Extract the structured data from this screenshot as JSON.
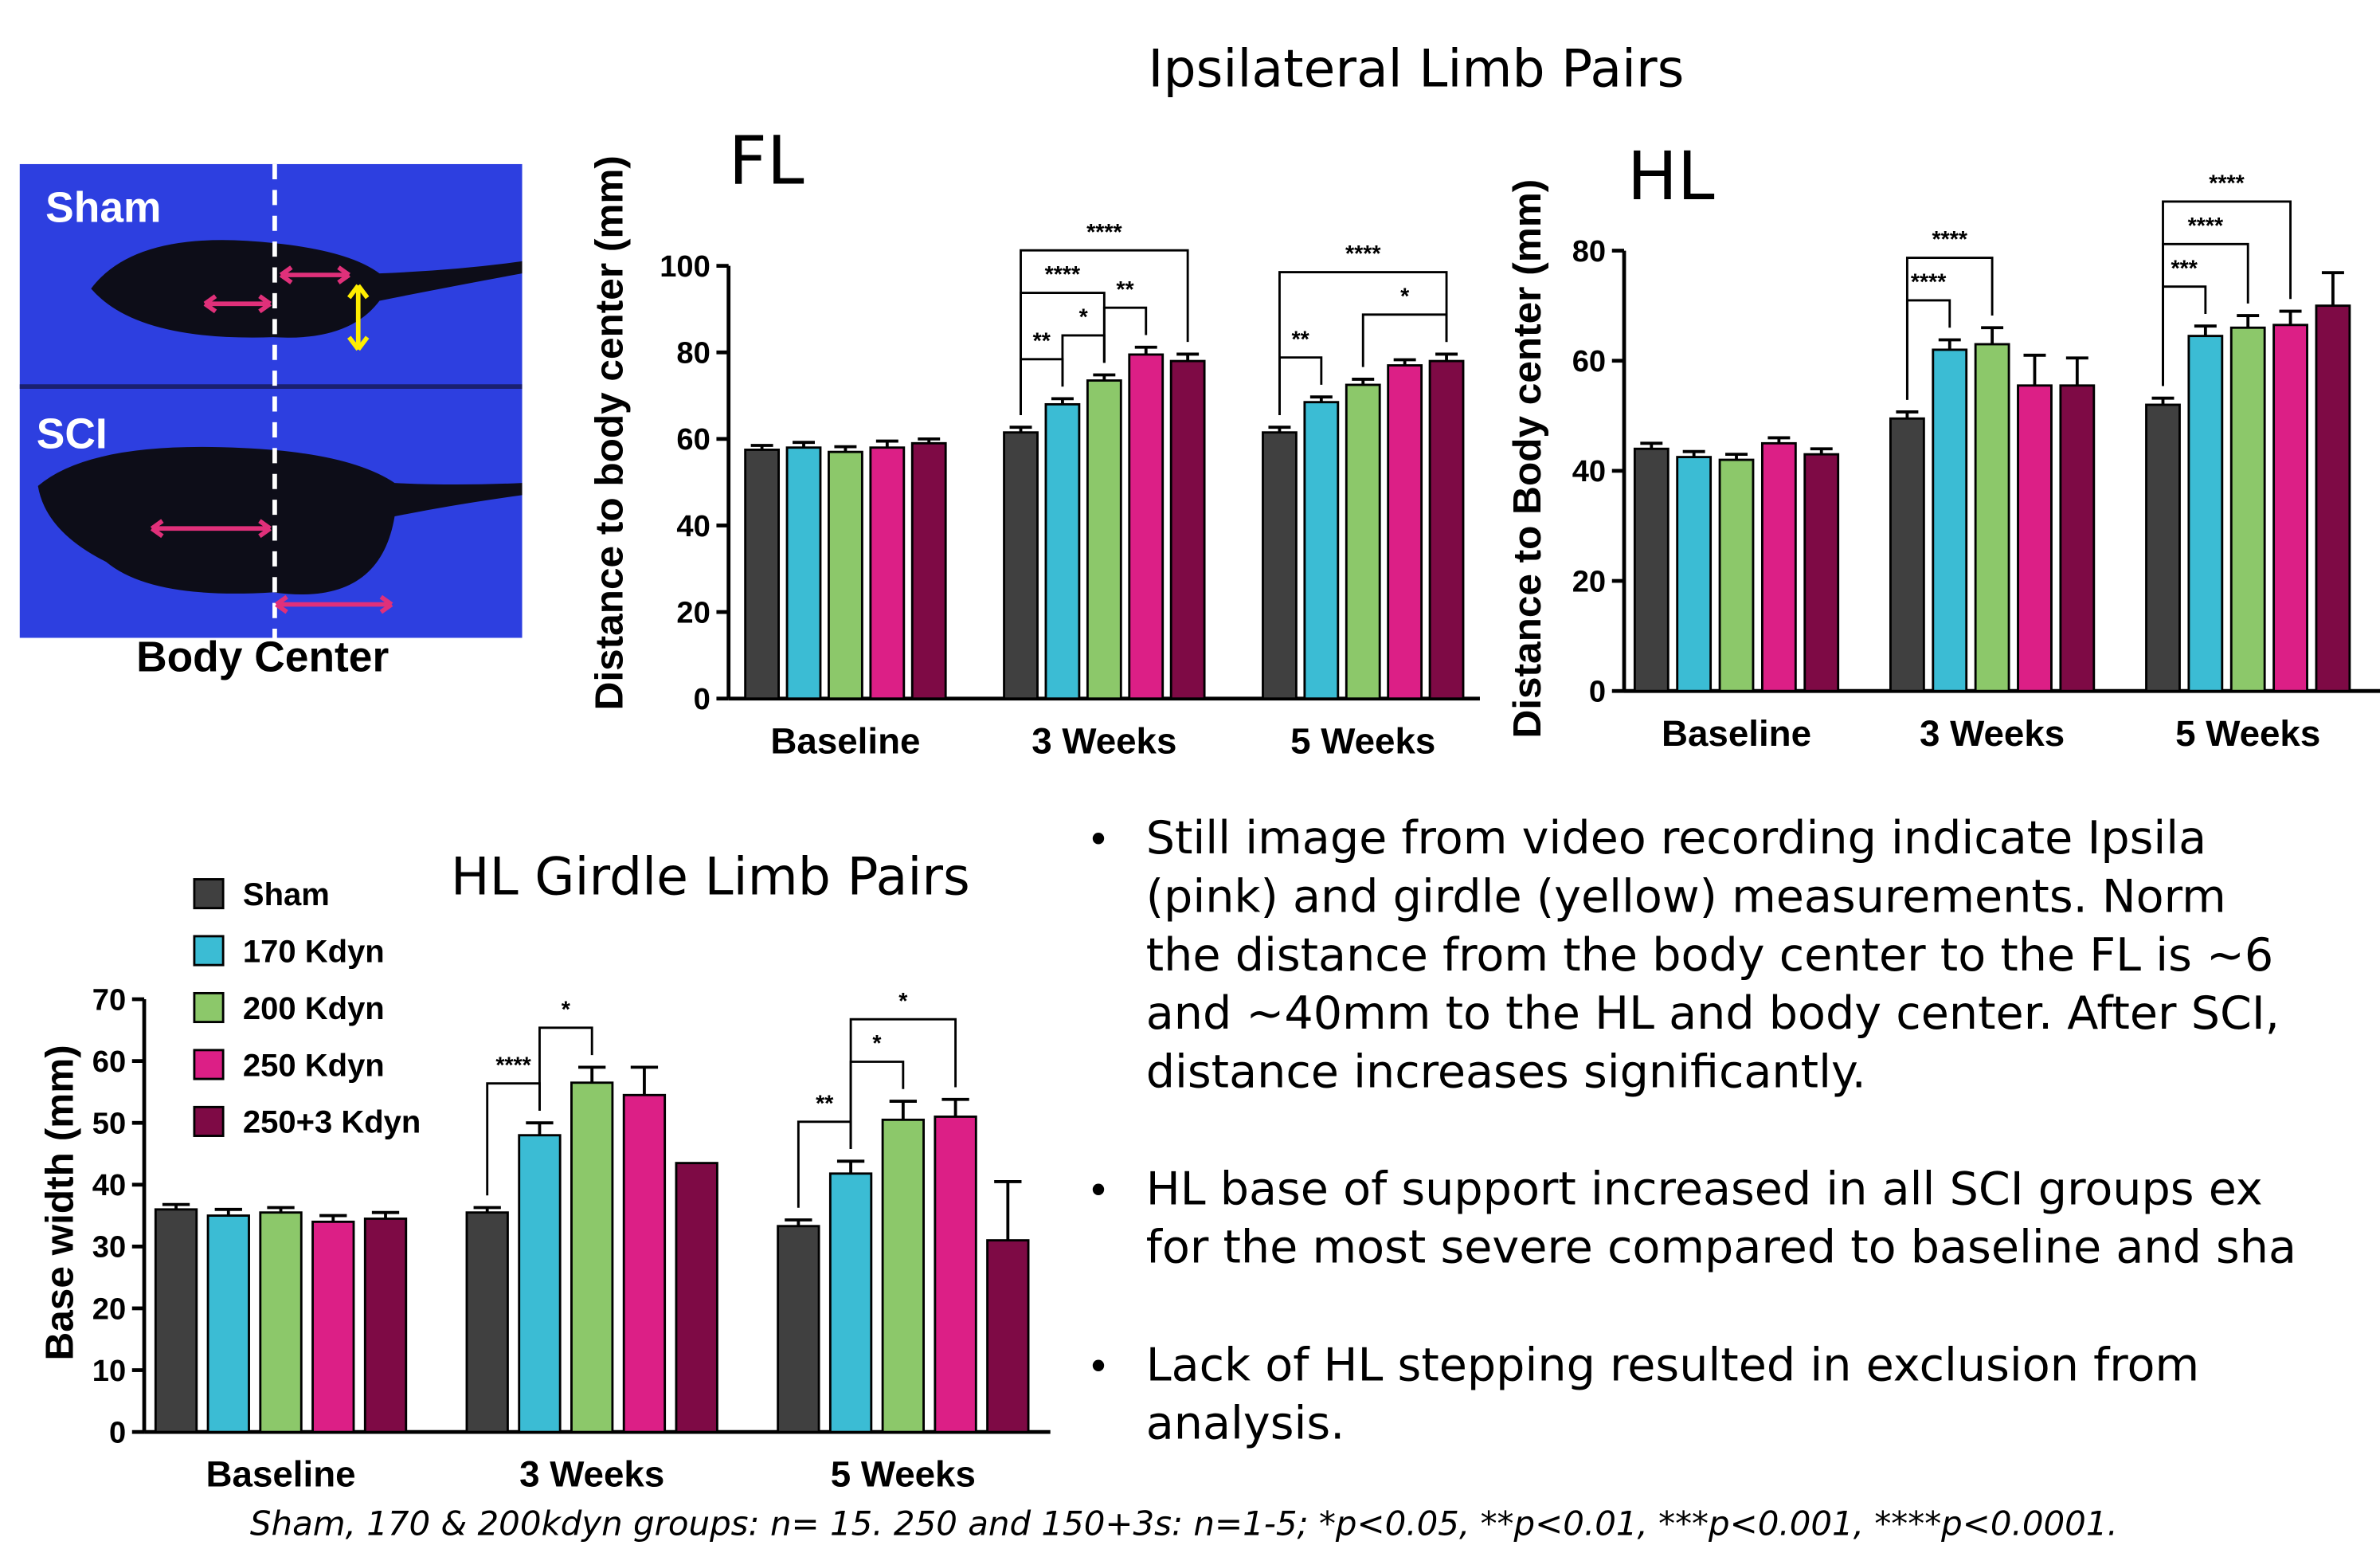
{
  "section_title": "Ipsilateral Limb Pairs",
  "image_labels": {
    "sham": "Sham",
    "sci": "SCI",
    "caption": "Body Center"
  },
  "bullets": [
    {
      "lines": [
        "Still image from video recording indicate Ipsila",
        "(pink) and girdle (yellow) measurements. Norm",
        "the distance from the body center to the FL is ~6",
        "and ~40mm to the HL and body center. After SCI,",
        "distance increases significantly."
      ]
    },
    {
      "lines": [
        "HL base of support increased in all SCI groups ex",
        "for the most severe compared to baseline and sha"
      ]
    },
    {
      "lines": [
        "Lack of HL stepping resulted in exclusion from",
        "analysis."
      ]
    }
  ],
  "footnote": "Sham, 170 & 200kdyn groups: n= 15. 250 and 150+3s: n=1-5; *p<0.05, **p<0.01, ***p<0.001, ****p<0.0001.",
  "chart_data": [
    {
      "type": "bar",
      "title": "FL",
      "ylabel": "Distance to body center  (mm)",
      "categories": [
        "Baseline",
        "3 Weeks",
        "5 Weeks"
      ],
      "series": [
        {
          "color": "#404040",
          "values": [
            57.5,
            61.5,
            61.5
          ],
          "errors": [
            1,
            1.2,
            1.2
          ]
        },
        {
          "color": "#3bbcd4",
          "values": [
            58,
            68,
            68.5
          ],
          "errors": [
            1.2,
            1.3,
            1.2
          ]
        },
        {
          "color": "#8cc86a",
          "values": [
            57,
            73.5,
            72.5
          ],
          "errors": [
            1.2,
            1.3,
            1.3
          ]
        },
        {
          "color": "#dc1f86",
          "values": [
            58,
            79.5,
            77
          ],
          "errors": [
            1.5,
            1.7,
            1.3
          ]
        },
        {
          "color": "#7e0a45",
          "values": [
            59,
            78,
            78
          ],
          "errors": [
            1,
            1.6,
            1.6
          ]
        }
      ],
      "ylim": [
        0,
        100
      ],
      "yticks": [
        0,
        20,
        40,
        60,
        80,
        100
      ],
      "annotations": [
        {
          "category": 1,
          "from": 0,
          "to": 1,
          "label": "**"
        },
        {
          "category": 1,
          "from": 1,
          "to": 2,
          "label": "*"
        },
        {
          "category": 1,
          "from": 2,
          "to": 3,
          "label": "**"
        },
        {
          "category": 1,
          "from": 0,
          "to": 2,
          "label": "****"
        },
        {
          "category": 1,
          "from": 0,
          "to": 4,
          "label": "****"
        },
        {
          "category": 2,
          "from": 0,
          "to": 1,
          "label": "**"
        },
        {
          "category": 2,
          "from": 2,
          "to": 4,
          "label": "*"
        },
        {
          "category": 2,
          "from": 0,
          "to": 4,
          "label": "****"
        }
      ]
    },
    {
      "type": "bar",
      "title": "HL",
      "ylabel": "Distance to Body center  (mm)",
      "categories": [
        "Baseline",
        "3 Weeks",
        "5 Weeks"
      ],
      "series": [
        {
          "color": "#404040",
          "values": [
            44,
            49.5,
            52
          ],
          "errors": [
            1,
            1.2,
            1.2
          ]
        },
        {
          "color": "#3bbcd4",
          "values": [
            42.5,
            62,
            64.5
          ],
          "errors": [
            1,
            1.8,
            1.8
          ]
        },
        {
          "color": "#8cc86a",
          "values": [
            42,
            63,
            66
          ],
          "errors": [
            1,
            3,
            2.2
          ]
        },
        {
          "color": "#dc1f86",
          "values": [
            45,
            55.5,
            66.5
          ],
          "errors": [
            1,
            5.5,
            2.5
          ]
        },
        {
          "color": "#7e0a45",
          "values": [
            43,
            55.5,
            70
          ],
          "errors": [
            1,
            5,
            6
          ]
        }
      ],
      "ylim": [
        0,
        80
      ],
      "yticks": [
        0,
        20,
        40,
        60,
        80
      ],
      "annotations": [
        {
          "category": 1,
          "from": 0,
          "to": 1,
          "label": "****"
        },
        {
          "category": 1,
          "from": 0,
          "to": 2,
          "label": "****"
        },
        {
          "category": 2,
          "from": 0,
          "to": 1,
          "label": "***"
        },
        {
          "category": 2,
          "from": 0,
          "to": 2,
          "label": "****"
        },
        {
          "category": 2,
          "from": 0,
          "to": 3,
          "label": "****"
        }
      ]
    },
    {
      "type": "bar",
      "title": "HL Girdle Limb Pairs",
      "ylabel": "Base width (mm)",
      "categories": [
        "Baseline",
        "3 Weeks",
        "5 Weeks"
      ],
      "series": [
        {
          "name": "Sham",
          "color": "#404040",
          "values": [
            36,
            35.5,
            33.3
          ],
          "errors": [
            0.8,
            0.8,
            1
          ]
        },
        {
          "name": "170 Kdyn",
          "color": "#3bbcd4",
          "values": [
            35,
            48,
            41.8
          ],
          "errors": [
            1,
            2,
            2
          ]
        },
        {
          "name": "200 Kdyn",
          "color": "#8cc86a",
          "values": [
            35.5,
            56.5,
            50.5
          ],
          "errors": [
            0.8,
            2.5,
            3
          ]
        },
        {
          "name": "250 Kdyn",
          "color": "#dc1f86",
          "values": [
            34,
            54.5,
            51
          ],
          "errors": [
            1,
            4.5,
            2.8
          ]
        },
        {
          "name": "250+3 Kdyn",
          "color": "#7e0a45",
          "values": [
            34.5,
            43.5,
            31
          ],
          "errors": [
            1,
            null,
            9.5
          ]
        }
      ],
      "ylim": [
        0,
        70
      ],
      "yticks": [
        0,
        10,
        20,
        30,
        40,
        50,
        60,
        70
      ],
      "annotations": [
        {
          "category": 1,
          "from": 0,
          "to": 1,
          "label": "****"
        },
        {
          "category": 1,
          "from": 1,
          "to": 2,
          "label": "*"
        },
        {
          "category": 2,
          "from": 0,
          "to": 1,
          "label": "**"
        },
        {
          "category": 2,
          "from": 1,
          "to": 2,
          "label": "*"
        },
        {
          "category": 2,
          "from": 1,
          "to": 3,
          "label": "*"
        }
      ]
    }
  ]
}
